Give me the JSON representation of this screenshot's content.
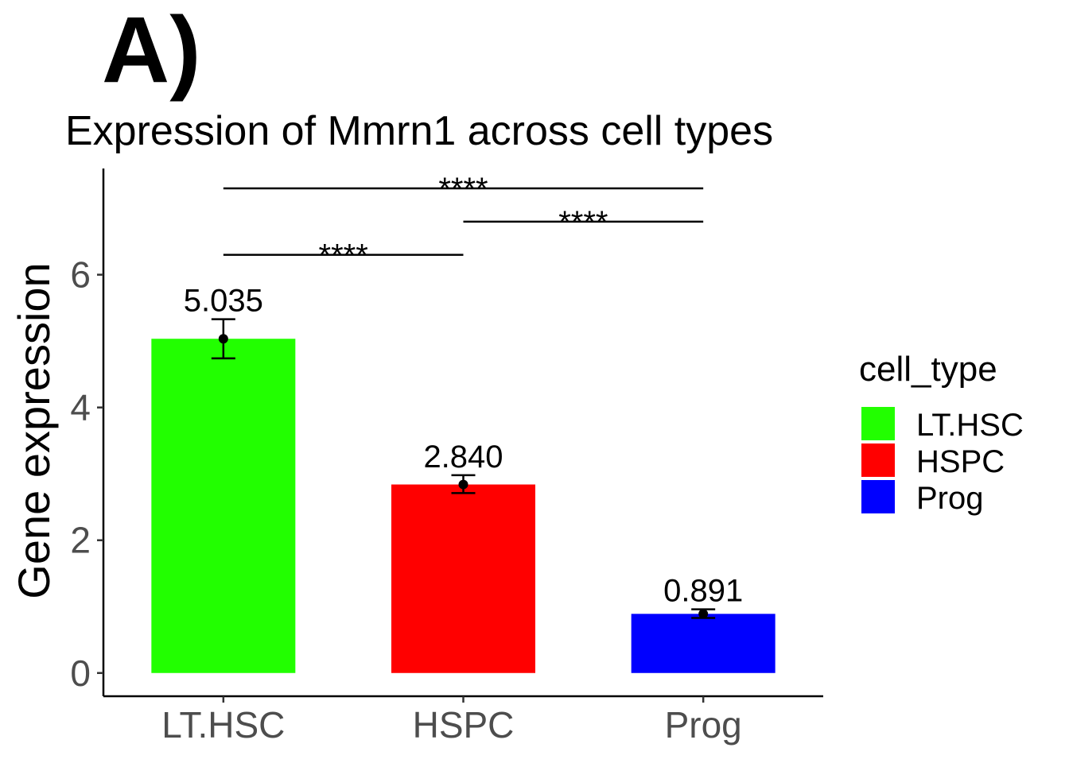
{
  "panel_label": "A)",
  "chart_data": {
    "type": "bar",
    "title": "Expression of Mmrn1 across cell types",
    "xlabel": "",
    "ylabel": "Gene expression",
    "categories": [
      "LT.HSC",
      "HSPC",
      "Prog"
    ],
    "values": [
      5.035,
      2.84,
      0.891
    ],
    "value_labels": [
      "5.035",
      "2.840",
      "0.891"
    ],
    "error_bars": [
      {
        "low": 4.74,
        "high": 5.33
      },
      {
        "low": 2.71,
        "high": 2.98
      },
      {
        "low": 0.83,
        "high": 0.96
      }
    ],
    "colors": [
      "#22ff00",
      "#ff0000",
      "#0000ff"
    ],
    "ylim": [
      -0.35,
      7.6
    ],
    "yticks": [
      0,
      2,
      4,
      6
    ],
    "ytick_labels": [
      "0",
      "2",
      "4",
      "6"
    ],
    "significance": [
      {
        "from": 0,
        "to": 1,
        "y": 6.3,
        "label": "****"
      },
      {
        "from": 1,
        "to": 2,
        "y": 6.8,
        "label": "****"
      },
      {
        "from": 0,
        "to": 2,
        "y": 7.3,
        "label": "****"
      }
    ],
    "legend": {
      "title": "cell_type",
      "position": "right",
      "items": [
        "LT.HSC",
        "HSPC",
        "Prog"
      ]
    },
    "grid": false
  }
}
